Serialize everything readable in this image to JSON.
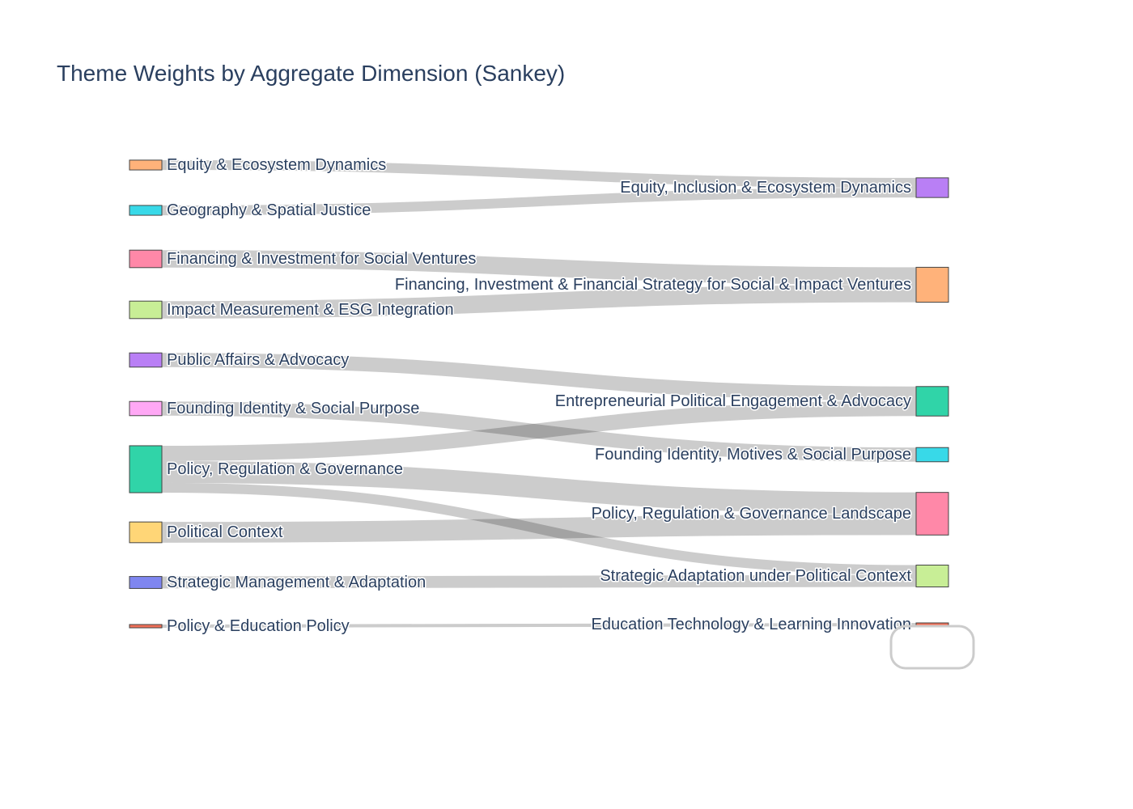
{
  "chart_data": {
    "type": "sankey",
    "title": "Theme Weights by Aggregate Dimension (Sankey)",
    "sources": [
      {
        "name": "Equity & Ecosystem Dynamics",
        "color": "#FFB27A"
      },
      {
        "name": "Geography & Spatial Justice",
        "color": "#38D9E8"
      },
      {
        "name": "Financing & Investment for Social Ventures",
        "color": "#FF88A8"
      },
      {
        "name": "Impact Measurement & ESG Integration",
        "color": "#C8EE96"
      },
      {
        "name": "Public Affairs & Advocacy",
        "color": "#B97FF5"
      },
      {
        "name": "Founding Identity & Social Purpose",
        "color": "#FFA8F5"
      },
      {
        "name": "Policy, Regulation & Governance",
        "color": "#30D4A8"
      },
      {
        "name": "Political Context",
        "color": "#FFD677"
      },
      {
        "name": "Strategic Management & Adaptation",
        "color": "#7F86F0"
      },
      {
        "name": "Policy & Education Policy",
        "color": "#F07058"
      }
    ],
    "targets": [
      {
        "name": "Equity, Inclusion & Ecosystem Dynamics",
        "color": "#B97FF5"
      },
      {
        "name": "Financing, Investment & Financial Strategy for Social & Impact Ventures",
        "color": "#FFB27A"
      },
      {
        "name": "Entrepreneurial Political Engagement & Advocacy",
        "color": "#30D4A8"
      },
      {
        "name": "Founding Identity, Motives & Social Purpose",
        "color": "#38D9E8"
      },
      {
        "name": "Policy, Regulation & Governance Landscape",
        "color": "#FF88A8"
      },
      {
        "name": "Strategic Adaptation under Political Context",
        "color": "#C8EE96"
      },
      {
        "name": "Education Technology & Learning Innovation",
        "color": "#F07058"
      }
    ],
    "links": [
      {
        "source": 0,
        "target": 0,
        "value": 9
      },
      {
        "source": 1,
        "target": 0,
        "value": 9
      },
      {
        "source": 2,
        "target": 1,
        "value": 16
      },
      {
        "source": 3,
        "target": 1,
        "value": 16
      },
      {
        "source": 4,
        "target": 2,
        "value": 13
      },
      {
        "source": 5,
        "target": 3,
        "value": 13
      },
      {
        "source": 6,
        "target": 2,
        "value": 14
      },
      {
        "source": 6,
        "target": 4,
        "value": 20
      },
      {
        "source": 6,
        "target": 5,
        "value": 9
      },
      {
        "source": 7,
        "target": 4,
        "value": 19
      },
      {
        "source": 8,
        "target": 5,
        "value": 11
      },
      {
        "source": 9,
        "target": 6,
        "value": 3
      }
    ]
  }
}
